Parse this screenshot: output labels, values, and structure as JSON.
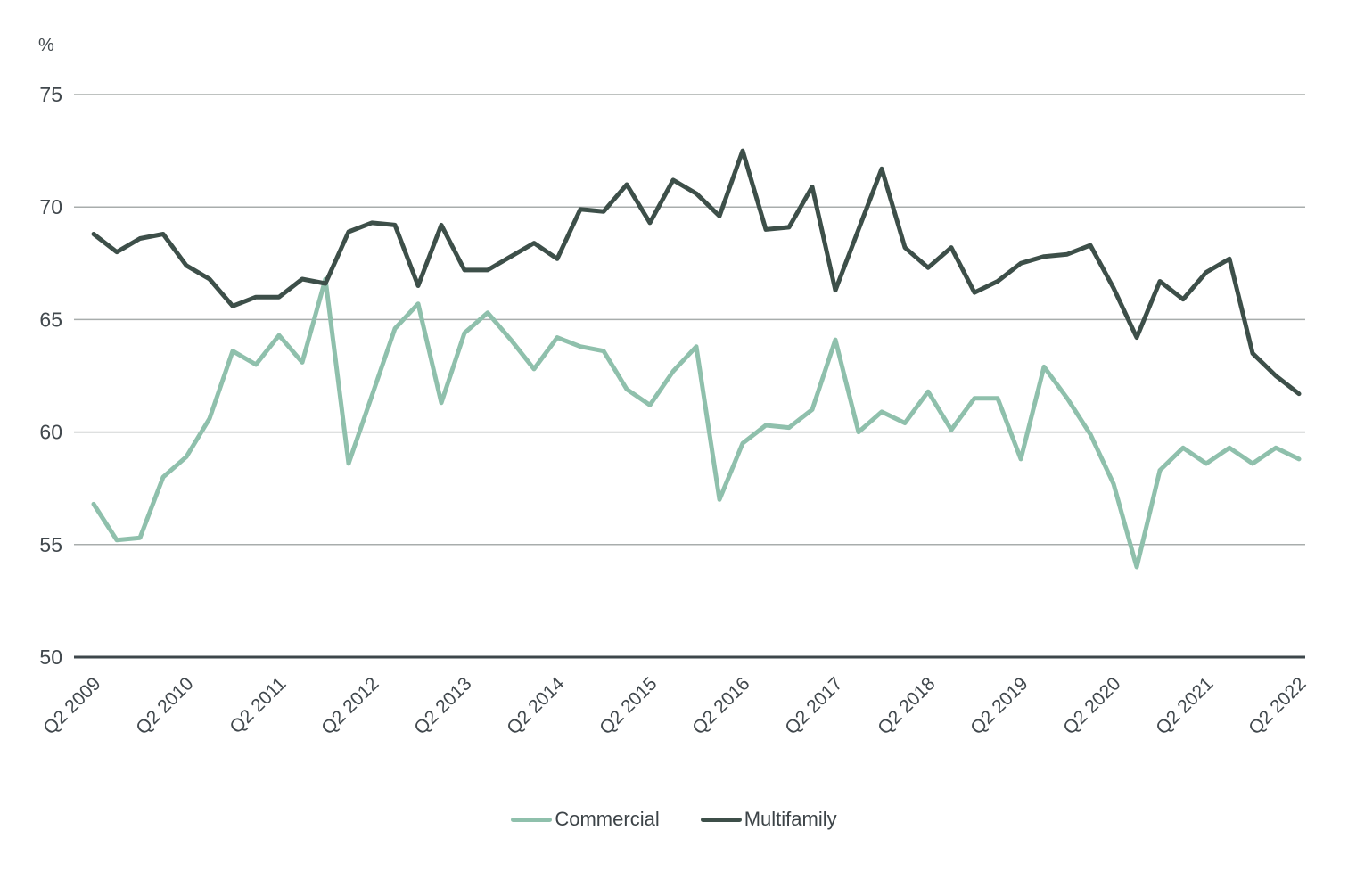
{
  "chart_data": {
    "type": "line",
    "title": "",
    "unit_label": "%",
    "xlabel": "",
    "ylabel": "%",
    "ylim": [
      50,
      75
    ],
    "y_ticks": [
      75,
      70,
      65,
      60,
      55,
      50
    ],
    "grid": "horizontal",
    "legend_position": "bottom-center",
    "grid_color": "#A8ADAC",
    "axis_color": "#3E474B",
    "tick_text_color": "#41484D",
    "x": [
      "Q2 2009",
      "Q3 2009",
      "Q4 2009",
      "Q1 2010",
      "Q2 2010",
      "Q3 2010",
      "Q4 2010",
      "Q1 2011",
      "Q2 2011",
      "Q3 2011",
      "Q4 2011",
      "Q1 2012",
      "Q2 2012",
      "Q3 2012",
      "Q4 2012",
      "Q1 2013",
      "Q2 2013",
      "Q3 2013",
      "Q4 2013",
      "Q1 2014",
      "Q2 2014",
      "Q3 2014",
      "Q4 2014",
      "Q1 2015",
      "Q2 2015",
      "Q3 2015",
      "Q4 2015",
      "Q1 2016",
      "Q2 2016",
      "Q3 2016",
      "Q4 2016",
      "Q1 2017",
      "Q2 2017",
      "Q3 2017",
      "Q4 2017",
      "Q1 2018",
      "Q2 2018",
      "Q3 2018",
      "Q4 2018",
      "Q1 2019",
      "Q2 2019",
      "Q3 2019",
      "Q4 2019",
      "Q1 2020",
      "Q2 2020",
      "Q3 2020",
      "Q4 2020",
      "Q1 2021",
      "Q2 2021",
      "Q3 2021",
      "Q4 2021",
      "Q1 2022",
      "Q2 2022"
    ],
    "x_tick_labels": [
      "Q2 2009",
      "Q2 2010",
      "Q2 2011",
      "Q2 2012",
      "Q2 2013",
      "Q2 2014",
      "Q2 2015",
      "Q2 2016",
      "Q2 2017",
      "Q2 2018",
      "Q2 2019",
      "Q2 2020",
      "Q2 2021",
      "Q2 2022"
    ],
    "series": [
      {
        "name": "Commercial",
        "color": "#8FC0AC",
        "values": [
          56.8,
          55.2,
          55.3,
          58.0,
          58.9,
          60.6,
          63.6,
          63.0,
          64.3,
          63.1,
          66.8,
          58.6,
          61.6,
          64.6,
          65.7,
          61.3,
          64.4,
          65.3,
          64.1,
          62.8,
          64.2,
          63.8,
          63.6,
          61.9,
          61.2,
          62.7,
          63.8,
          57.0,
          59.5,
          60.3,
          60.2,
          61.0,
          64.1,
          60.0,
          60.9,
          60.4,
          61.8,
          60.1,
          61.5,
          61.5,
          58.8,
          62.9,
          61.5,
          59.9,
          57.7,
          54.0,
          58.3,
          59.3,
          58.6,
          59.3,
          58.6,
          59.3,
          58.8
        ]
      },
      {
        "name": "Multifamily",
        "color": "#3D4F49",
        "values": [
          68.8,
          68.0,
          68.6,
          68.8,
          67.4,
          66.8,
          65.6,
          66.0,
          66.0,
          66.8,
          66.6,
          68.9,
          69.3,
          69.2,
          66.5,
          69.2,
          67.2,
          67.2,
          67.8,
          68.4,
          67.7,
          69.9,
          69.8,
          71.0,
          69.3,
          71.2,
          70.6,
          69.6,
          72.5,
          69.0,
          69.1,
          70.9,
          66.3,
          69.0,
          71.7,
          68.2,
          67.3,
          68.2,
          66.2,
          66.7,
          67.5,
          67.8,
          67.9,
          68.3,
          66.4,
          64.2,
          66.7,
          65.9,
          67.1,
          67.7,
          63.5,
          62.5,
          61.7
        ]
      }
    ]
  }
}
